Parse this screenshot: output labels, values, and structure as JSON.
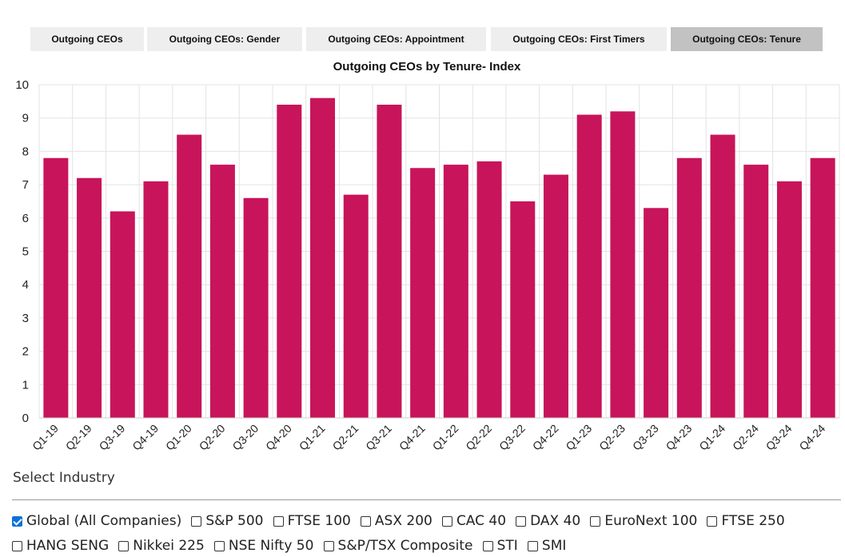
{
  "tabs": [
    {
      "label": "Outgoing CEOs",
      "active": false
    },
    {
      "label": "Outgoing CEOs: Gender",
      "active": false
    },
    {
      "label": "Outgoing CEOs: Appointment",
      "active": false
    },
    {
      "label": "Outgoing CEOs: First Timers",
      "active": false
    },
    {
      "label": "Outgoing CEOs: Tenure",
      "active": true
    }
  ],
  "chart_data": {
    "type": "bar",
    "title": "Outgoing CEOs by Tenure- Index",
    "xlabel": "",
    "ylabel": "",
    "ylim": [
      0,
      10
    ],
    "yticks": [
      0,
      1,
      2,
      3,
      4,
      5,
      6,
      7,
      8,
      9,
      10
    ],
    "grid": true,
    "bar_color": "#c8145a",
    "categories": [
      "Q1-19",
      "Q2-19",
      "Q3-19",
      "Q4-19",
      "Q1-20",
      "Q2-20",
      "Q3-20",
      "Q4-20",
      "Q1-21",
      "Q2-21",
      "Q3-21",
      "Q4-21",
      "Q1-22",
      "Q2-22",
      "Q3-22",
      "Q4-22",
      "Q1-23",
      "Q2-23",
      "Q3-23",
      "Q4-23",
      "Q1-24",
      "Q2-24",
      "Q3-24",
      "Q4-24"
    ],
    "values": [
      7.8,
      7.2,
      6.2,
      7.1,
      8.5,
      7.6,
      6.6,
      9.4,
      9.6,
      6.7,
      9.4,
      7.5,
      7.6,
      7.7,
      6.5,
      7.3,
      9.1,
      9.2,
      6.3,
      7.8,
      8.5,
      7.6,
      7.1,
      7.8
    ]
  },
  "industry": {
    "label": "Select Industry",
    "rows": [
      [
        {
          "label": "Global (All Companies)",
          "checked": true
        },
        {
          "label": "S&P 500",
          "checked": false
        },
        {
          "label": "FTSE 100",
          "checked": false
        },
        {
          "label": "ASX 200",
          "checked": false
        },
        {
          "label": "CAC 40",
          "checked": false
        },
        {
          "label": "DAX 40",
          "checked": false
        },
        {
          "label": "EuroNext 100",
          "checked": false
        },
        {
          "label": "FTSE 250",
          "checked": false
        }
      ],
      [
        {
          "label": "HANG SENG",
          "checked": false
        },
        {
          "label": "Nikkei 225",
          "checked": false
        },
        {
          "label": "NSE Nifty 50",
          "checked": false
        },
        {
          "label": "S&P/TSX Composite",
          "checked": false
        },
        {
          "label": "STI",
          "checked": false
        },
        {
          "label": "SMI",
          "checked": false
        }
      ]
    ]
  }
}
